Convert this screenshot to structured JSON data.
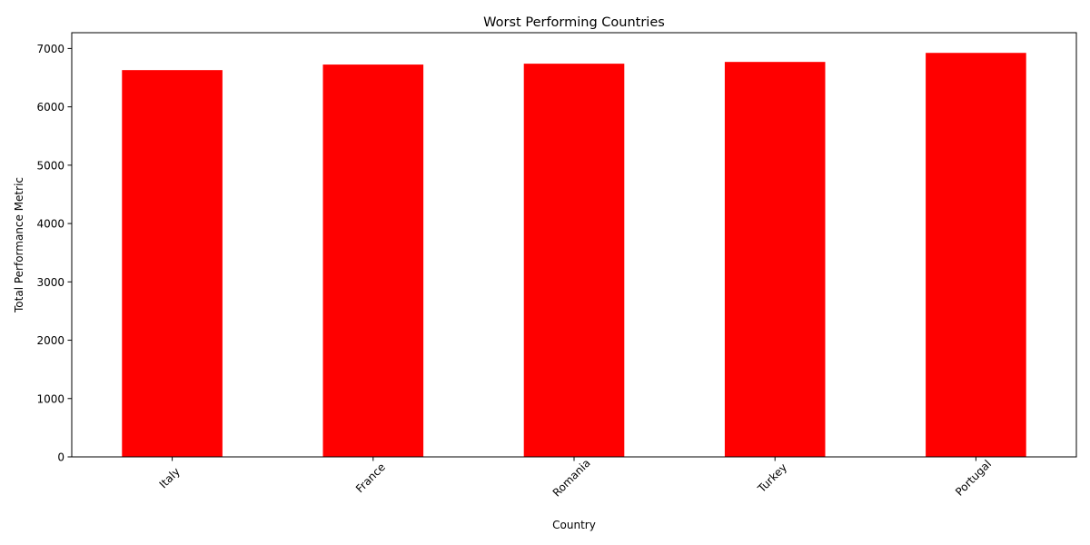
{
  "chart_data": {
    "type": "bar",
    "title": "Worst Performing Countries",
    "xlabel": "Country",
    "ylabel": "Total Performance Metric",
    "categories": [
      "Italy",
      "France",
      "Romania",
      "Turkey",
      "Portugal"
    ],
    "values": [
      6630,
      6725,
      6740,
      6770,
      6925
    ],
    "ylim": [
      0,
      7271
    ],
    "yticks": [
      0,
      1000,
      2000,
      3000,
      4000,
      5000,
      6000,
      7000
    ],
    "bar_color": "#ff0000",
    "grid": false,
    "legend": "none",
    "x_tick_rotation": "45"
  }
}
